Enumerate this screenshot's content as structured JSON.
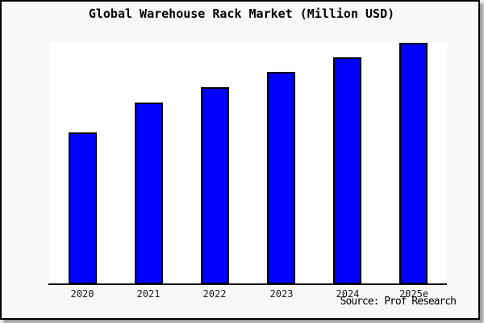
{
  "chart_data": {
    "type": "bar",
    "title": "Global Warehouse Rack Market (Million USD)",
    "categories": [
      "2020",
      "2021",
      "2022",
      "2023",
      "2024",
      "2025e"
    ],
    "values": [
      188,
      225,
      244,
      263,
      281,
      299
    ],
    "units": "relative (no y-axis tick labels shown; values measured as bar heights on a 0-300 px plot scale)",
    "xlabel": "",
    "ylabel": "",
    "ylim": [
      0,
      300
    ],
    "grid": false,
    "legend": false,
    "bar_color": "#0000ff",
    "bar_border_color": "#000000",
    "plot_background": "#ffffff",
    "outer_background": "#f8f8f8"
  },
  "source": {
    "text": "Source: Prof Research"
  }
}
